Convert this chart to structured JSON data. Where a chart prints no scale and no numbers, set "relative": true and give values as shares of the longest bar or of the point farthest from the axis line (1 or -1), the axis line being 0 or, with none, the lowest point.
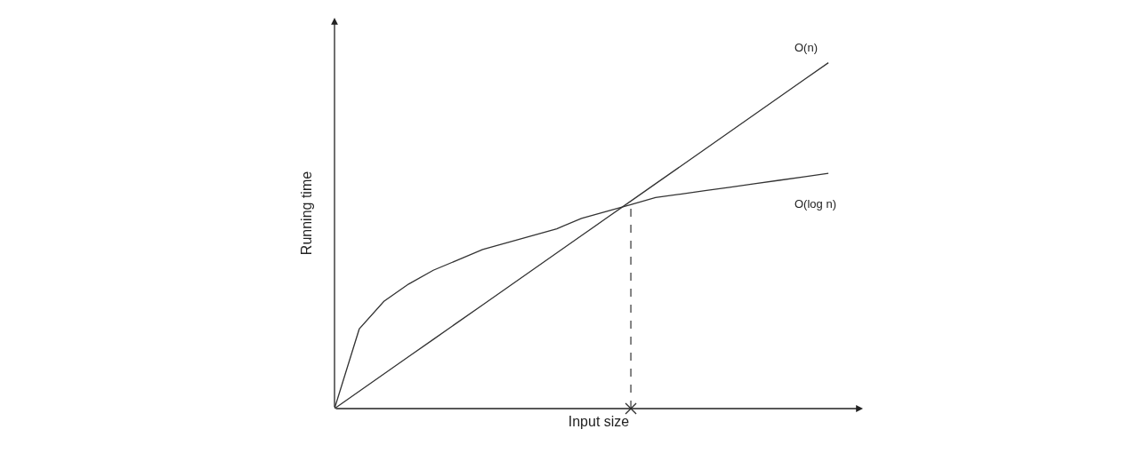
{
  "chart_data": {
    "type": "line",
    "relative": true,
    "xlabel": "Input size",
    "ylabel": "Running time",
    "categories": [
      null,
      null,
      null,
      null,
      null,
      null,
      null,
      null,
      null,
      null,
      null,
      null,
      null,
      null,
      null,
      null,
      null,
      null,
      null,
      null,
      null
    ],
    "series": [
      {
        "name": "O(n)",
        "color": "#333333",
        "values": [
          0,
          0.05,
          0.1,
          0.15,
          0.2,
          0.25,
          0.3,
          0.35,
          0.4,
          0.45,
          0.5,
          0.55,
          0.6,
          0.65,
          0.7,
          0.75,
          0.8,
          0.85,
          0.9,
          0.95,
          1
        ]
      },
      {
        "name": "O(log n)",
        "color": "#333333",
        "values": [
          0,
          0.23,
          0.31,
          0.36,
          0.4,
          0.43,
          0.46,
          0.48,
          0.5,
          0.52,
          0.55,
          0.57,
          0.59,
          0.61,
          0.62,
          0.63,
          0.64,
          0.65,
          0.66,
          0.67,
          0.68
        ]
      }
    ],
    "legend": false,
    "marker": "none",
    "line_style": "solid"
  }
}
